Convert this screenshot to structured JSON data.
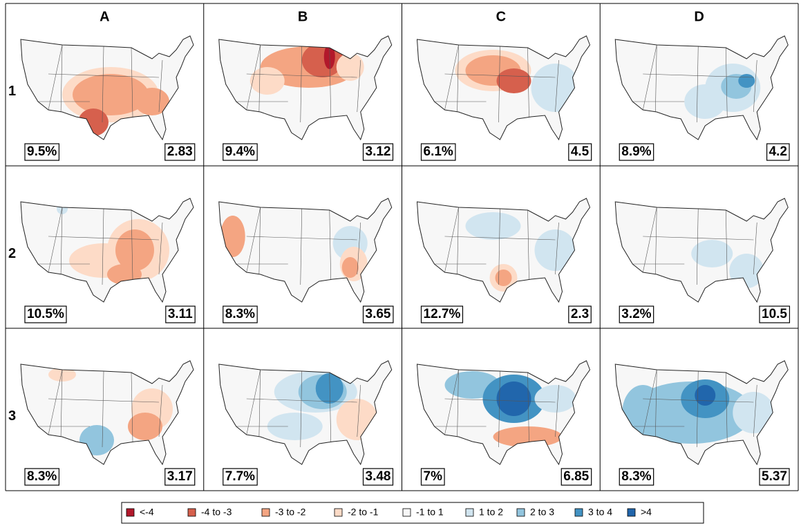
{
  "columns": [
    "A",
    "B",
    "C",
    "D"
  ],
  "rows": [
    {
      "label": "1",
      "cells": [
        {
          "percent": "9.5%",
          "score": "2.83"
        },
        {
          "percent": "9.4%",
          "score": "3.12"
        },
        {
          "percent": "6.1%",
          "score": "4.5"
        },
        {
          "percent": "8.9%",
          "score": "4.2"
        }
      ]
    },
    {
      "label": "2",
      "cells": [
        {
          "percent": "10.5%",
          "score": "3.11"
        },
        {
          "percent": "8.3%",
          "score": "3.65"
        },
        {
          "percent": "12.7%",
          "score": "2.3"
        },
        {
          "percent": "3.2%",
          "score": "10.5"
        }
      ]
    },
    {
      "label": "3",
      "cells": [
        {
          "percent": "8.3%",
          "score": "3.17"
        },
        {
          "percent": "7.7%",
          "score": "3.48"
        },
        {
          "percent": "7%",
          "score": "6.85"
        },
        {
          "percent": "8.3%",
          "score": "5.37"
        }
      ]
    }
  ],
  "legend": [
    {
      "label": "<-4",
      "color": "#b2182b"
    },
    {
      "label": "-4 to -3",
      "color": "#d6604d"
    },
    {
      "label": "-3 to -2",
      "color": "#f4a582"
    },
    {
      "label": "-2 to -1",
      "color": "#fddbc7"
    },
    {
      "label": "-1 to 1",
      "color": "#f7f7f7"
    },
    {
      "label": "1 to 2",
      "color": "#d1e5f0"
    },
    {
      "label": "2 to 3",
      "color": "#92c5de"
    },
    {
      "label": "3 to 4",
      "color": "#4393c3"
    },
    {
      "label": ">4",
      "color": "#2166ac"
    }
  ]
}
